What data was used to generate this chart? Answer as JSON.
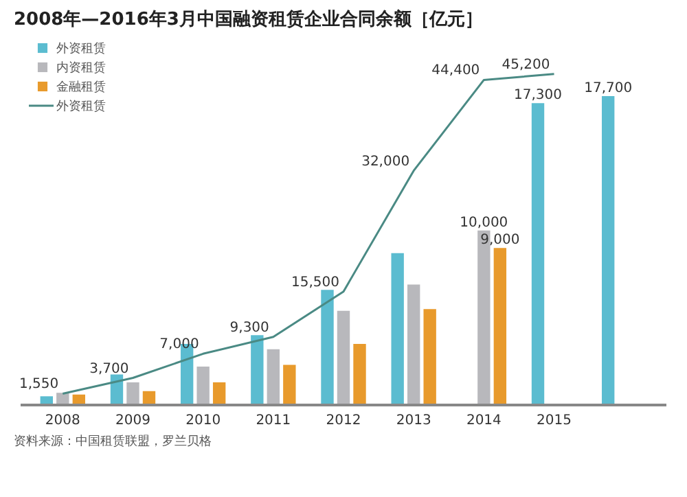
{
  "chart_data": {
    "type": "bar",
    "title": "2008年—2016年3月中国融资租赁企业合同余额［亿元］",
    "categories": [
      "2008",
      "2009",
      "2010",
      "2011",
      "2012",
      "2013",
      "2014",
      "2015",
      null
    ],
    "series": [
      {
        "name": "外资租赁",
        "color": "#5bbcd0",
        "values": [
          500,
          1750,
          3500,
          4000,
          6600,
          8700,
          null,
          17300,
          17700
        ],
        "value_labels": [
          null,
          null,
          null,
          null,
          null,
          null,
          null,
          "17,300",
          "17,700"
        ]
      },
      {
        "name": "内资租赁",
        "color": "#b8b8bc",
        "values": [
          700,
          1300,
          2200,
          3200,
          5400,
          6900,
          10000,
          null,
          null
        ],
        "value_labels": [
          null,
          null,
          null,
          null,
          null,
          null,
          "10,000",
          null,
          null
        ]
      },
      {
        "name": "金融租赁",
        "color": "#e89a2c",
        "values": [
          600,
          800,
          1300,
          2300,
          3500,
          5500,
          9000,
          null,
          null
        ],
        "value_labels": [
          null,
          null,
          null,
          null,
          null,
          null,
          "9,000",
          null,
          null
        ]
      },
      {
        "name": "外资租赁",
        "type": "line",
        "axis": "y2",
        "color": "#4a8a84",
        "values": [
          1550,
          3700,
          7000,
          9300,
          15500,
          32000,
          44400,
          45200,
          null
        ],
        "value_labels": [
          "1,550",
          "3,700",
          "7,000",
          "9,300",
          "15,500",
          "32,000",
          "44,400",
          "45,200",
          null
        ]
      }
    ],
    "legend": "top left",
    "tick_labels": "x",
    "grid": false,
    "annotations": [
      "资料来源：中国租赁联盟，罗兰贝格"
    ]
  }
}
